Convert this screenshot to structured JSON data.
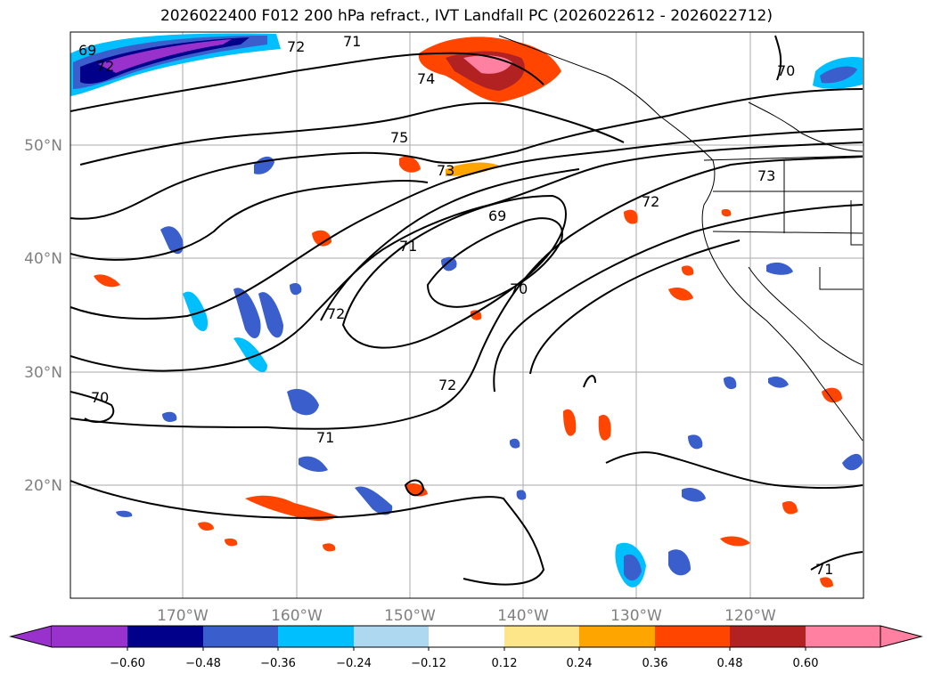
{
  "title": "2026022400 F012 200 hPa refract., IVT Landfall PC (2026022612 - 2026022712)",
  "map": {
    "projection": "equirectangular",
    "lon_range": [
      -180,
      -110
    ],
    "lat_range": [
      10,
      60
    ],
    "gridlines": true,
    "lon_ticks": [
      "170°W",
      "160°W",
      "150°W",
      "140°W",
      "130°W",
      "120°W"
    ],
    "lat_ticks": [
      "50°N",
      "40°N",
      "30°N",
      "20°N"
    ],
    "contour_labels": [
      "69",
      "72",
      "71",
      "72",
      "74",
      "75",
      "73",
      "69",
      "71",
      "72",
      "70",
      "72",
      "73",
      "70",
      "72",
      "70",
      "71",
      "71"
    ],
    "shading_colors": {
      "negative": [
        "#9932cc",
        "#00008b",
        "#3a5fcd",
        "#00bfff",
        "#add8f0"
      ],
      "positive": [
        "#fde68a",
        "#ffa500",
        "#ff4500",
        "#b22222",
        "#ff80a0"
      ]
    }
  },
  "colorbar": {
    "tick_labels": [
      "−0.60",
      "−0.48",
      "−0.36",
      "−0.24",
      "−0.12",
      "0.12",
      "0.24",
      "0.36",
      "0.48",
      "0.60"
    ],
    "colors": [
      "#9932cc",
      "#00008b",
      "#3a5fcd",
      "#00bfff",
      "#add8f0",
      "#ffffff",
      "#fde68a",
      "#ffa500",
      "#ff4500",
      "#b22222",
      "#ff80a0"
    ],
    "extend": "both"
  }
}
